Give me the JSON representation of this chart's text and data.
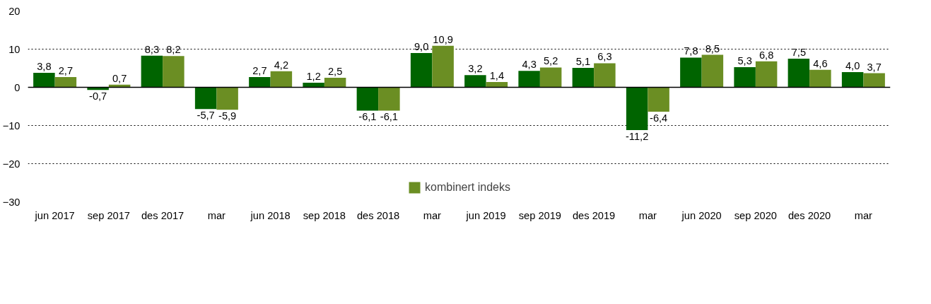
{
  "chart_data": {
    "type": "bar",
    "categories": [
      "jun 2017",
      "sep 2017",
      "des 2017",
      "mar",
      "jun 2018",
      "sep 2018",
      "des 2018",
      "mar",
      "jun 2019",
      "sep 2019",
      "des 2019",
      "mar",
      "jun 2020",
      "sep 2020",
      "des 2020",
      "mar"
    ],
    "series": [
      {
        "color": "#006400",
        "values": [
          3.8,
          -0.7,
          8.3,
          -5.7,
          2.7,
          1.2,
          -6.1,
          9.0,
          3.2,
          4.3,
          5.1,
          -11.2,
          7.8,
          5.3,
          7.5,
          4.0
        ],
        "value_labels": [
          "3,8",
          "-0,7",
          "8,3",
          "-5,7",
          "2,7",
          "1,2",
          "-6,1",
          "9,0",
          "3,2",
          "4,3",
          "5,1",
          "-11,2",
          "7,8",
          "5,3",
          "7,5",
          "4,0"
        ]
      },
      {
        "name": "kombinert indeks",
        "color": "#6b8e23",
        "values": [
          2.7,
          0.7,
          8.2,
          -5.9,
          4.2,
          2.5,
          -6.1,
          10.9,
          1.4,
          5.2,
          6.3,
          -6.4,
          8.5,
          6.8,
          4.6,
          3.7
        ],
        "value_labels": [
          "2,7",
          "0,7",
          "8,2",
          "-5,9",
          "4,2",
          "2,5",
          "-6,1",
          "10,9",
          "1,4",
          "5,2",
          "6,3",
          "-6,4",
          "8,5",
          "6,8",
          "4,6",
          "3,7"
        ]
      }
    ],
    "ylim": [
      -30,
      20
    ],
    "yticks": [
      -30,
      -20,
      -10,
      0,
      10,
      20
    ],
    "grid": "y",
    "legend": "bottom",
    "ref_lines": [
      {
        "axis": "y",
        "value": 0,
        "color": "#000000"
      }
    ]
  }
}
